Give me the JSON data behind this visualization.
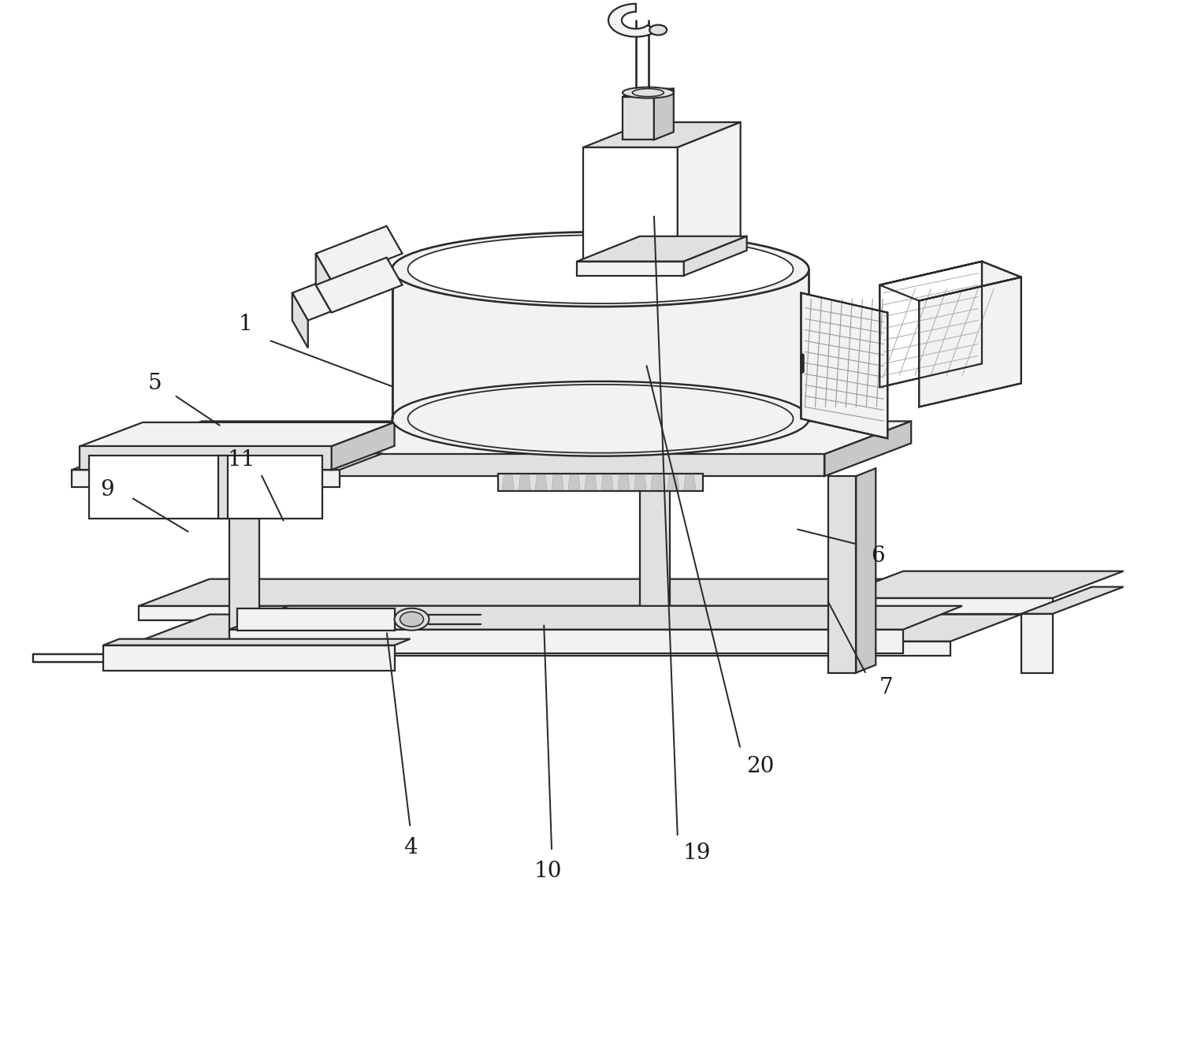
{
  "background_color": "#ffffff",
  "line_color": "#2a2a2a",
  "line_width": 1.6,
  "fill_white": "#ffffff",
  "fill_light": "#f2f2f2",
  "fill_medium": "#e0e0e0",
  "fill_dark": "#c8c8c8",
  "fill_darker": "#b0b0b0",
  "label_fontsize": 20,
  "label_color": "#1a1a1a"
}
